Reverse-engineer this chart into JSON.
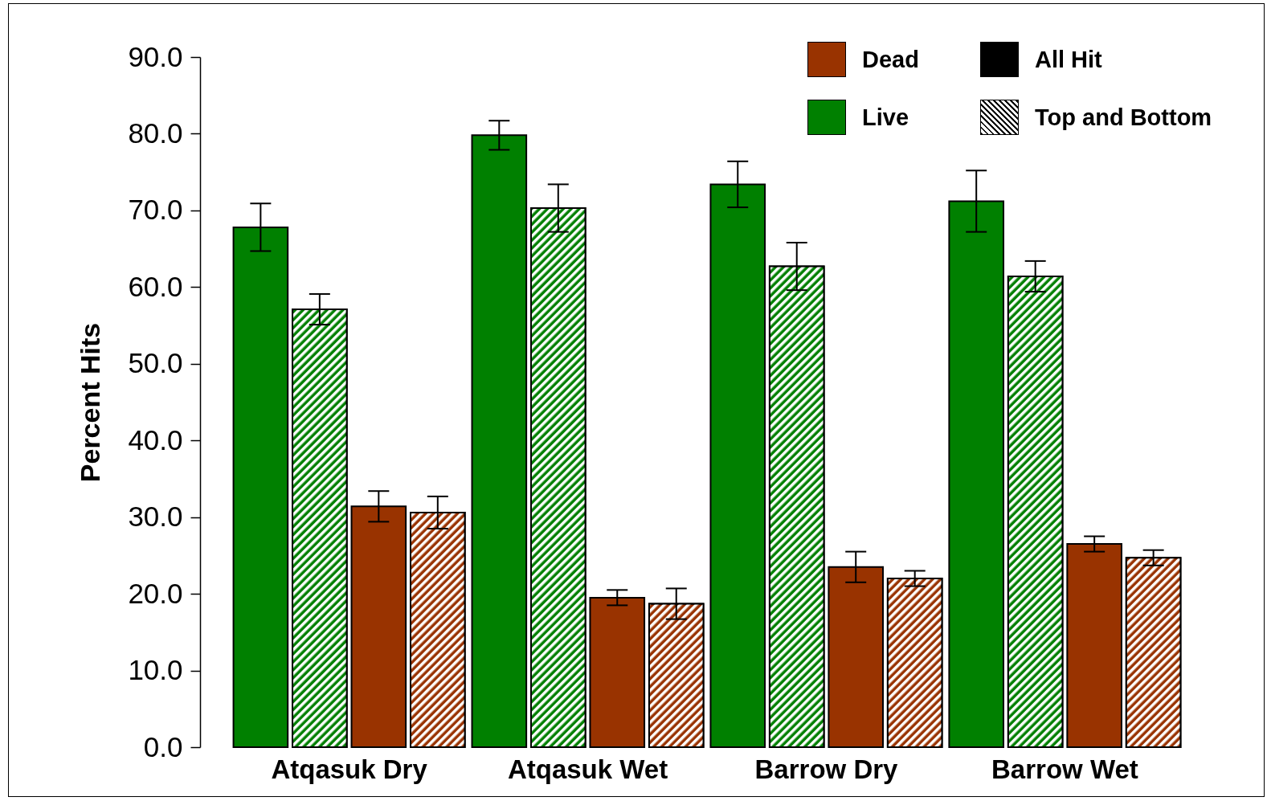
{
  "chart_data": {
    "type": "bar",
    "ylabel": "Percent Hits",
    "categories": [
      "Atqasuk Dry",
      "Atqasuk Wet",
      "Barrow Dry",
      "Barrow Wet"
    ],
    "series": [
      {
        "color": "#008000",
        "values": [
          67.8,
          79.8,
          73.4,
          71.2
        ],
        "errors": [
          3.1,
          1.9,
          3.0,
          4.0
        ]
      },
      {
        "color": "#008000",
        "values": [
          57.1,
          70.3,
          62.7,
          61.4
        ],
        "errors": [
          2.0,
          3.1,
          3.1,
          2.0
        ]
      },
      {
        "color": "#993300",
        "values": [
          31.4,
          19.5,
          23.5,
          26.5
        ],
        "errors": [
          2.0,
          1.0,
          2.0,
          1.0
        ]
      },
      {
        "color": "#993300",
        "values": [
          30.6,
          18.7,
          22.0,
          24.7
        ],
        "errors": [
          2.1,
          2.0,
          1.0,
          1.0
        ]
      }
    ],
    "annotations": [
      "Dead",
      "All Hit",
      "Live",
      "Top and Bottom"
    ],
    "ylim": [
      0,
      90
    ],
    "yticks": [
      {
        "value": 0,
        "label": "0.0"
      },
      {
        "value": 10,
        "label": "10.0"
      },
      {
        "value": 20,
        "label": "20.0"
      },
      {
        "value": 30,
        "label": "30.0"
      },
      {
        "value": 40,
        "label": "40.0"
      },
      {
        "value": 50,
        "label": "50.0"
      },
      {
        "value": 60,
        "label": "60.0"
      },
      {
        "value": 70,
        "label": "70.0"
      },
      {
        "value": 80,
        "label": "80.0"
      },
      {
        "value": 90,
        "label": "90.0"
      }
    ],
    "grid": false
  }
}
